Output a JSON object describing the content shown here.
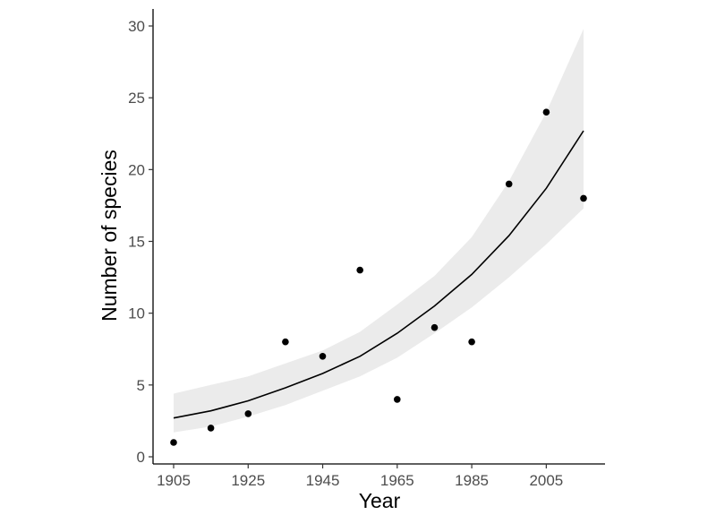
{
  "chart_data": {
    "type": "scatter",
    "title": "",
    "xlabel": "Year",
    "ylabel": "Number of species",
    "xlim": [
      1900,
      2020
    ],
    "ylim": [
      0,
      31
    ],
    "x_ticks": [
      1905,
      1925,
      1945,
      1965,
      1985,
      2005
    ],
    "y_ticks": [
      0,
      5,
      10,
      15,
      20,
      25,
      30
    ],
    "grid": false,
    "legend": "none",
    "series": [
      {
        "type": "scatter",
        "x": [
          1905,
          1915,
          1925,
          1935,
          1945,
          1955,
          1965,
          1975,
          1985,
          1995,
          2005,
          2015
        ],
        "y": [
          1,
          2,
          3,
          8,
          7,
          13,
          4,
          9,
          8,
          19,
          24,
          18
        ]
      },
      {
        "type": "line",
        "x": [
          1905,
          1915,
          1925,
          1935,
          1945,
          1955,
          1965,
          1975,
          1985,
          1995,
          2005,
          2015
        ],
        "y": [
          2.7,
          3.2,
          3.9,
          4.8,
          5.8,
          7.0,
          8.6,
          10.5,
          12.7,
          15.4,
          18.7,
          22.7
        ],
        "lower": [
          1.7,
          2.1,
          2.8,
          3.6,
          4.6,
          5.6,
          6.9,
          8.6,
          10.4,
          12.5,
          14.8,
          17.3
        ],
        "upper": [
          4.4,
          5.0,
          5.6,
          6.5,
          7.4,
          8.7,
          10.6,
          12.6,
          15.3,
          19.2,
          24.0,
          29.8
        ]
      }
    ],
    "colors": {
      "points": "#000000",
      "line": "#000000",
      "band": "#ebebeb",
      "axis": "#000000",
      "tick_text": "#4d4d4d"
    }
  }
}
